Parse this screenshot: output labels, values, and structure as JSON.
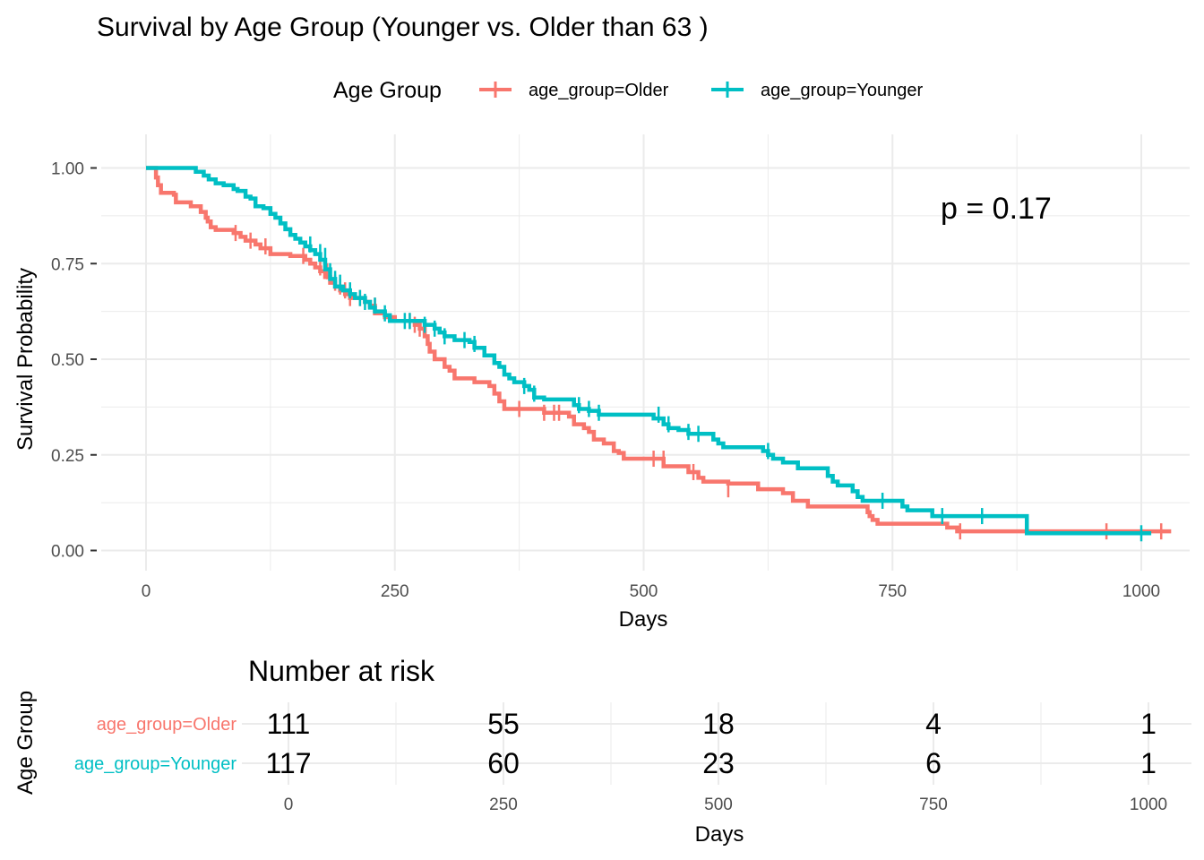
{
  "chart_data": [
    {
      "type": "line",
      "subtype": "kaplan-meier step curve",
      "title": "Survival by Age Group (Younger vs. Older than 63 )",
      "xlabel": "Days",
      "ylabel": "Survival Probability",
      "xlim": [
        0,
        1030
      ],
      "ylim": [
        0,
        1
      ],
      "x_ticks": [
        0,
        250,
        500,
        750,
        1000
      ],
      "x_tick_labels": [
        "0",
        "250",
        "500",
        "750",
        "1000"
      ],
      "y_ticks": [
        0,
        0.25,
        0.5,
        0.75,
        1
      ],
      "y_tick_labels": [
        "0.00",
        "0.25",
        "0.50",
        "0.75",
        "1.00"
      ],
      "grid": true,
      "legend": {
        "title": "Age Group",
        "placement": "top"
      },
      "annotation": "p = 0.17",
      "series": [
        {
          "name": "age_group=Older",
          "color": "#F8766D",
          "steps": [
            [
              0,
              1.0
            ],
            [
              10,
              0.975
            ],
            [
              12,
              0.955
            ],
            [
              15,
              0.935
            ],
            [
              28,
              0.93
            ],
            [
              30,
              0.91
            ],
            [
              45,
              0.9
            ],
            [
              55,
              0.885
            ],
            [
              60,
              0.87
            ],
            [
              62,
              0.86
            ],
            [
              65,
              0.845
            ],
            [
              70,
              0.838
            ],
            [
              88,
              0.83
            ],
            [
              95,
              0.82
            ],
            [
              100,
              0.81
            ],
            [
              110,
              0.8
            ],
            [
              115,
              0.79
            ],
            [
              125,
              0.775
            ],
            [
              145,
              0.77
            ],
            [
              160,
              0.76
            ],
            [
              165,
              0.75
            ],
            [
              170,
              0.74
            ],
            [
              175,
              0.73
            ],
            [
              180,
              0.715
            ],
            [
              185,
              0.7
            ],
            [
              190,
              0.69
            ],
            [
              195,
              0.68
            ],
            [
              200,
              0.67
            ],
            [
              205,
              0.66
            ],
            [
              220,
              0.65
            ],
            [
              225,
              0.64
            ],
            [
              230,
              0.62
            ],
            [
              240,
              0.61
            ],
            [
              250,
              0.6
            ],
            [
              270,
              0.59
            ],
            [
              275,
              0.58
            ],
            [
              280,
              0.56
            ],
            [
              283,
              0.54
            ],
            [
              285,
              0.52
            ],
            [
              290,
              0.5
            ],
            [
              300,
              0.48
            ],
            [
              305,
              0.47
            ],
            [
              310,
              0.45
            ],
            [
              330,
              0.44
            ],
            [
              345,
              0.43
            ],
            [
              350,
              0.41
            ],
            [
              355,
              0.39
            ],
            [
              360,
              0.37
            ],
            [
              400,
              0.36
            ],
            [
              425,
              0.35
            ],
            [
              430,
              0.33
            ],
            [
              440,
              0.32
            ],
            [
              445,
              0.31
            ],
            [
              450,
              0.29
            ],
            [
              460,
              0.28
            ],
            [
              470,
              0.26
            ],
            [
              475,
              0.255
            ],
            [
              480,
              0.24
            ],
            [
              520,
              0.22
            ],
            [
              545,
              0.205
            ],
            [
              555,
              0.19
            ],
            [
              560,
              0.18
            ],
            [
              585,
              0.175
            ],
            [
              615,
              0.16
            ],
            [
              640,
              0.15
            ],
            [
              650,
              0.13
            ],
            [
              665,
              0.115
            ],
            [
              725,
              0.1
            ],
            [
              727,
              0.09
            ],
            [
              730,
              0.08
            ],
            [
              735,
              0.07
            ],
            [
              805,
              0.06
            ],
            [
              815,
              0.05
            ],
            [
              1030,
              0.05
            ]
          ],
          "censored": [
            [
              90,
              0.83
            ],
            [
              105,
              0.81
            ],
            [
              120,
              0.795
            ],
            [
              158,
              0.77
            ],
            [
              175,
              0.74
            ],
            [
              182,
              0.73
            ],
            [
              190,
              0.7
            ],
            [
              195,
              0.69
            ],
            [
              200,
              0.68
            ],
            [
              205,
              0.66
            ],
            [
              215,
              0.66
            ],
            [
              230,
              0.64
            ],
            [
              265,
              0.6
            ],
            [
              270,
              0.59
            ],
            [
              275,
              0.58
            ],
            [
              375,
              0.37
            ],
            [
              400,
              0.36
            ],
            [
              410,
              0.36
            ],
            [
              415,
              0.36
            ],
            [
              510,
              0.24
            ],
            [
              520,
              0.24
            ],
            [
              550,
              0.205
            ],
            [
              585,
              0.16
            ],
            [
              818,
              0.05
            ],
            [
              965,
              0.05
            ],
            [
              1020,
              0.05
            ]
          ]
        },
        {
          "name": "age_group=Younger",
          "color": "#00BFC4",
          "steps": [
            [
              0,
              1.0
            ],
            [
              50,
              0.99
            ],
            [
              58,
              0.98
            ],
            [
              63,
              0.97
            ],
            [
              70,
              0.96
            ],
            [
              78,
              0.955
            ],
            [
              88,
              0.945
            ],
            [
              92,
              0.94
            ],
            [
              100,
              0.925
            ],
            [
              105,
              0.92
            ],
            [
              110,
              0.9
            ],
            [
              118,
              0.895
            ],
            [
              125,
              0.88
            ],
            [
              130,
              0.87
            ],
            [
              135,
              0.855
            ],
            [
              140,
              0.84
            ],
            [
              145,
              0.825
            ],
            [
              150,
              0.815
            ],
            [
              155,
              0.805
            ],
            [
              160,
              0.795
            ],
            [
              165,
              0.785
            ],
            [
              170,
              0.775
            ],
            [
              175,
              0.76
            ],
            [
              180,
              0.735
            ],
            [
              185,
              0.71
            ],
            [
              190,
              0.69
            ],
            [
              198,
              0.68
            ],
            [
              205,
              0.67
            ],
            [
              210,
              0.66
            ],
            [
              220,
              0.65
            ],
            [
              225,
              0.635
            ],
            [
              230,
              0.625
            ],
            [
              240,
              0.615
            ],
            [
              245,
              0.6
            ],
            [
              280,
              0.59
            ],
            [
              290,
              0.58
            ],
            [
              295,
              0.57
            ],
            [
              300,
              0.56
            ],
            [
              310,
              0.55
            ],
            [
              325,
              0.545
            ],
            [
              330,
              0.53
            ],
            [
              340,
              0.51
            ],
            [
              350,
              0.49
            ],
            [
              355,
              0.48
            ],
            [
              360,
              0.46
            ],
            [
              365,
              0.45
            ],
            [
              370,
              0.44
            ],
            [
              380,
              0.43
            ],
            [
              385,
              0.42
            ],
            [
              390,
              0.4
            ],
            [
              400,
              0.395
            ],
            [
              430,
              0.38
            ],
            [
              435,
              0.37
            ],
            [
              445,
              0.365
            ],
            [
              455,
              0.355
            ],
            [
              510,
              0.345
            ],
            [
              520,
              0.33
            ],
            [
              525,
              0.32
            ],
            [
              535,
              0.315
            ],
            [
              545,
              0.305
            ],
            [
              570,
              0.29
            ],
            [
              575,
              0.28
            ],
            [
              580,
              0.27
            ],
            [
              620,
              0.26
            ],
            [
              625,
              0.25
            ],
            [
              630,
              0.24
            ],
            [
              640,
              0.23
            ],
            [
              655,
              0.215
            ],
            [
              685,
              0.195
            ],
            [
              690,
              0.18
            ],
            [
              695,
              0.17
            ],
            [
              710,
              0.155
            ],
            [
              715,
              0.14
            ],
            [
              720,
              0.13
            ],
            [
              760,
              0.115
            ],
            [
              765,
              0.105
            ],
            [
              790,
              0.09
            ],
            [
              885,
              0.045
            ],
            [
              1010,
              0.045
            ]
          ],
          "censored": [
            [
              165,
              0.8
            ],
            [
              175,
              0.78
            ],
            [
              180,
              0.77
            ],
            [
              185,
              0.73
            ],
            [
              190,
              0.71
            ],
            [
              195,
              0.7
            ],
            [
              205,
              0.68
            ],
            [
              215,
              0.66
            ],
            [
              220,
              0.65
            ],
            [
              230,
              0.64
            ],
            [
              240,
              0.62
            ],
            [
              260,
              0.6
            ],
            [
              265,
              0.6
            ],
            [
              280,
              0.59
            ],
            [
              290,
              0.58
            ],
            [
              300,
              0.56
            ],
            [
              320,
              0.55
            ],
            [
              330,
              0.54
            ],
            [
              380,
              0.43
            ],
            [
              390,
              0.41
            ],
            [
              435,
              0.38
            ],
            [
              445,
              0.37
            ],
            [
              455,
              0.36
            ],
            [
              515,
              0.355
            ],
            [
              525,
              0.33
            ],
            [
              545,
              0.31
            ],
            [
              555,
              0.305
            ],
            [
              625,
              0.26
            ],
            [
              740,
              0.13
            ],
            [
              800,
              0.09
            ],
            [
              840,
              0.09
            ],
            [
              1000,
              0.045
            ]
          ]
        }
      ]
    },
    {
      "type": "table",
      "title": "Number at risk",
      "xlabel": "Days",
      "ylabel": "Age Group",
      "x_ticks": [
        0,
        250,
        500,
        750,
        1000
      ],
      "x_tick_labels": [
        "0",
        "250",
        "500",
        "750",
        "1000"
      ],
      "rows": [
        {
          "name": "age_group=Older",
          "color": "#F8766D",
          "values": [
            111,
            55,
            18,
            4,
            1
          ],
          "value_labels": [
            "111",
            "55",
            "18",
            "4",
            "1"
          ]
        },
        {
          "name": "age_group=Younger",
          "color": "#00BFC4",
          "values": [
            117,
            60,
            23,
            6,
            1
          ],
          "value_labels": [
            "117",
            "60",
            "23",
            "6",
            "1"
          ]
        }
      ]
    }
  ]
}
